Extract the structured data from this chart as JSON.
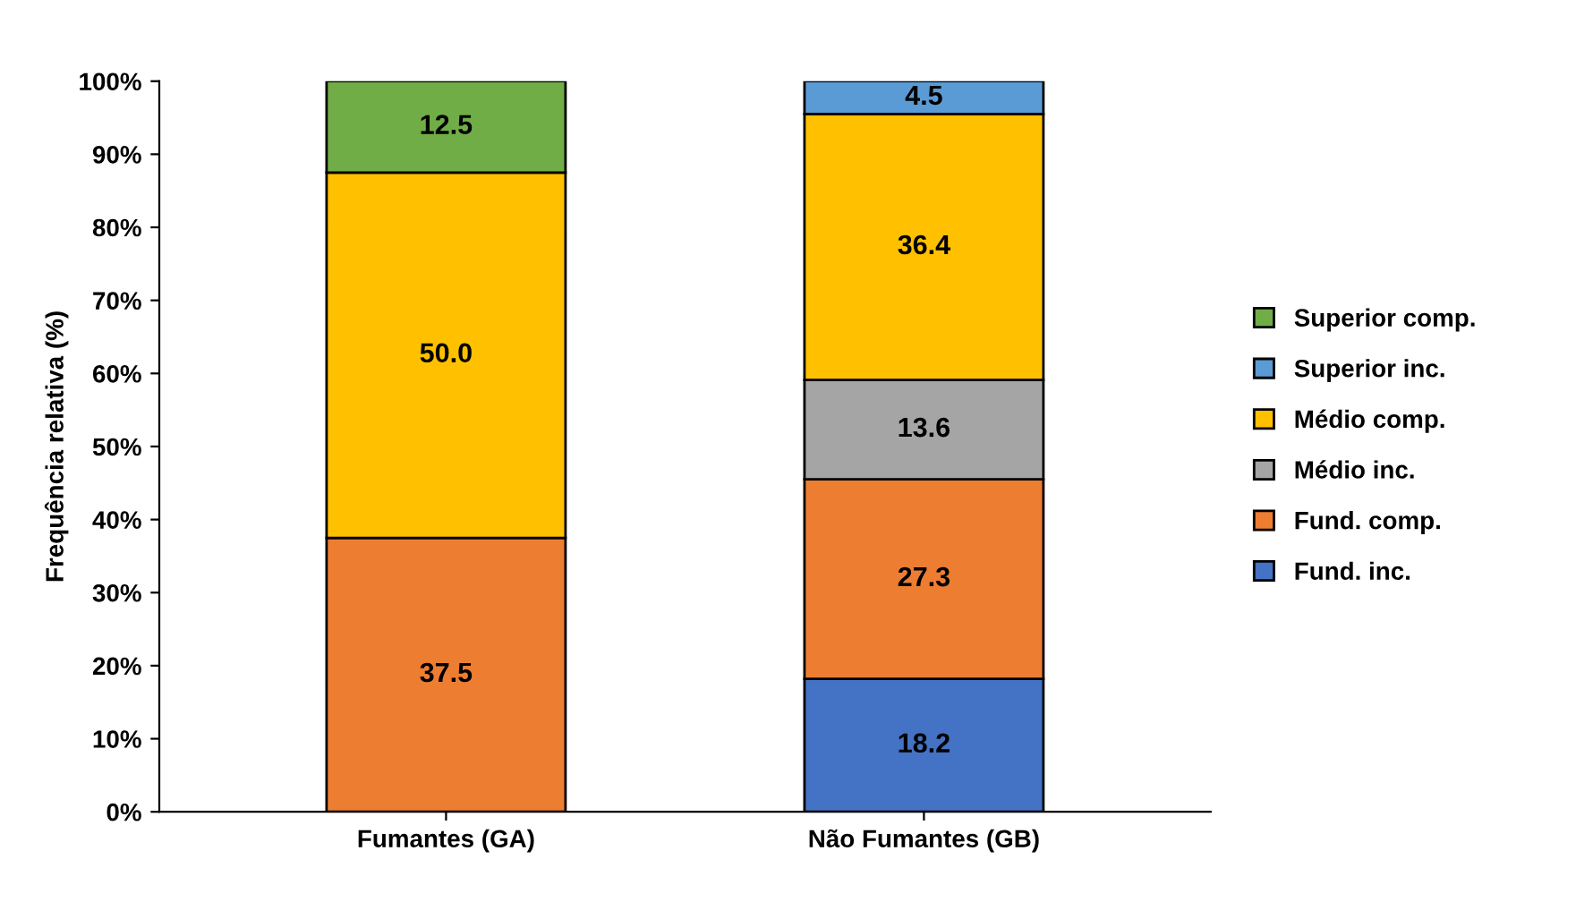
{
  "chart_data": {
    "type": "bar",
    "stacked": true,
    "ylabel": "Frequência relativa (%)",
    "categories": [
      "Fumantes (GA)",
      "Não Fumantes (GB)"
    ],
    "series": [
      {
        "name": "Fund. inc.",
        "color": "#4472c4",
        "values": [
          null,
          18.2
        ],
        "value_labels": [
          null,
          "18.2"
        ]
      },
      {
        "name": "Fund. comp.",
        "color": "#ed7d31",
        "values": [
          37.5,
          27.3
        ],
        "value_labels": [
          "37.5",
          "27.3"
        ]
      },
      {
        "name": "Médio inc.",
        "color": "#a5a5a5",
        "values": [
          null,
          13.6
        ],
        "value_labels": [
          null,
          "13.6"
        ]
      },
      {
        "name": "Médio comp.",
        "color": "#ffc000",
        "values": [
          50.0,
          36.4
        ],
        "value_labels": [
          "50.0",
          "36.4"
        ]
      },
      {
        "name": "Superior inc.",
        "color": "#5b9bd5",
        "values": [
          null,
          4.5
        ],
        "value_labels": [
          null,
          "4.5"
        ]
      },
      {
        "name": "Superior comp.",
        "color": "#70ad47",
        "values": [
          12.5,
          null
        ],
        "value_labels": [
          "12.5",
          null
        ]
      }
    ],
    "ylim": [
      0,
      100
    ],
    "yticks": [
      {
        "value": 0,
        "label": "0%"
      },
      {
        "value": 10,
        "label": "10%"
      },
      {
        "value": 20,
        "label": "20%"
      },
      {
        "value": 30,
        "label": "30%"
      },
      {
        "value": 40,
        "label": "40%"
      },
      {
        "value": 50,
        "label": "50%"
      },
      {
        "value": 60,
        "label": "60%"
      },
      {
        "value": 70,
        "label": "70%"
      },
      {
        "value": 80,
        "label": "80%"
      },
      {
        "value": 90,
        "label": "90%"
      },
      {
        "value": 100,
        "label": "100%"
      }
    ],
    "grid": false,
    "legend": "right"
  }
}
